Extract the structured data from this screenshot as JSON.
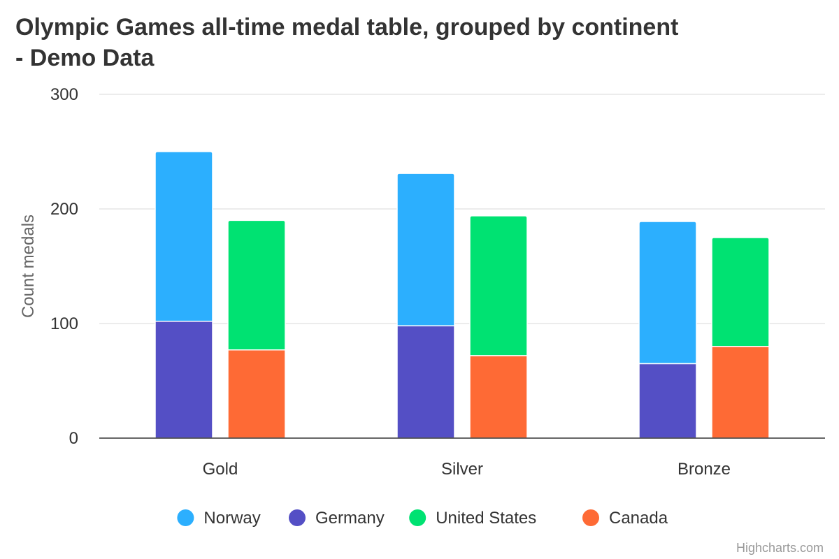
{
  "title_lines": [
    "Olympic Games all-time medal table, grouped by continent",
    "- Demo Data"
  ],
  "credits": "Highcharts.com",
  "chart_data": {
    "type": "bar",
    "stacking": "normal",
    "orientation": "vertical",
    "categories": [
      "Gold",
      "Silver",
      "Bronze"
    ],
    "ylabel": "Count medals",
    "xlabel": "",
    "ylim": [
      0,
      300
    ],
    "yticks": [
      0,
      100,
      200,
      300
    ],
    "grid": true,
    "legend_position": "bottom-center",
    "stacks": [
      "Europe",
      "North America"
    ],
    "series": [
      {
        "name": "Norway",
        "stack": "Europe",
        "color": "#2caffe",
        "values": [
          148,
          133,
          124
        ]
      },
      {
        "name": "Germany",
        "stack": "Europe",
        "color": "#544fc5",
        "values": [
          102,
          98,
          65
        ]
      },
      {
        "name": "United States",
        "stack": "North America",
        "color": "#00e272",
        "values": [
          113,
          122,
          95
        ]
      },
      {
        "name": "Canada",
        "stack": "North America",
        "color": "#fe6a35",
        "values": [
          77,
          72,
          80
        ]
      }
    ]
  }
}
